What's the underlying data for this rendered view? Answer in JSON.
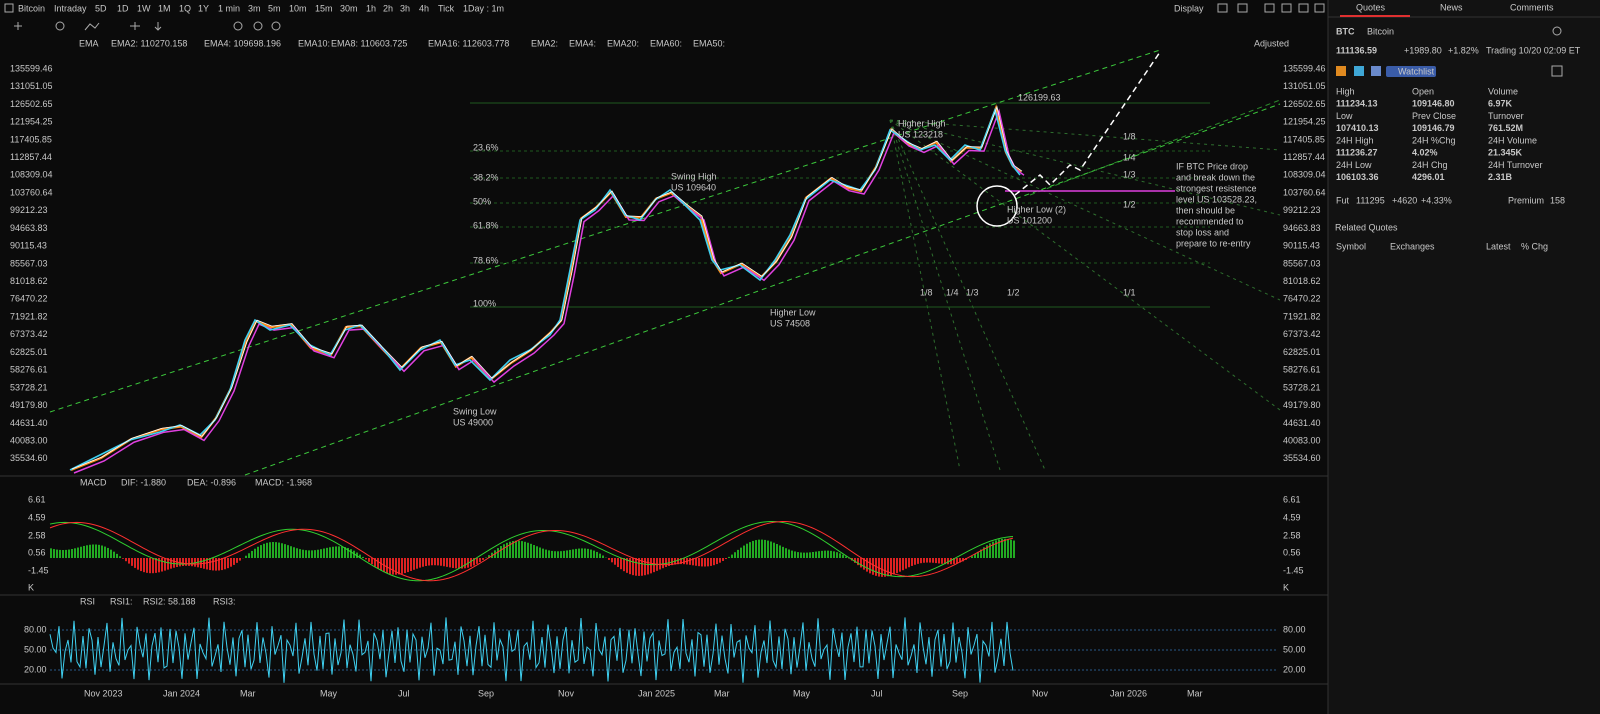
{
  "toolbar": {
    "symbol": "Bitcoin",
    "periods": [
      "Intraday",
      "5D",
      "1D",
      "1W",
      "1M",
      "1Q",
      "1Y"
    ],
    "intervals": [
      "1 min",
      "3m",
      "5m",
      "10m",
      "15m",
      "30m",
      "1h",
      "2h",
      "3h",
      "4h",
      "Tick"
    ],
    "range": "1Day : 1m",
    "display": "Display"
  },
  "tabs": [
    "Quotes",
    "News",
    "Comments"
  ],
  "main_indicator": {
    "name": "EMA",
    "adjusted": "Adjusted",
    "items": [
      {
        "text": "EMA2: 110270.158",
        "color": "#ff8c1a"
      },
      {
        "text": "EMA4: 109698.196",
        "color": "#3fd0f0"
      },
      {
        "text": "EMA10:",
        "color": "#e040e0"
      },
      {
        "text": "EMA8: 110603.725",
        "color": "#3fd0f0"
      },
      {
        "text": "EMA16: 112603.778",
        "color": "#e040e0"
      },
      {
        "text": "EMA2:",
        "color": "#30c030"
      },
      {
        "text": "EMA4:",
        "color": "#e03030"
      },
      {
        "text": "EMA20:",
        "color": "#d0d0d0"
      },
      {
        "text": "EMA60:",
        "color": "#a070ff"
      },
      {
        "text": "EMA50:",
        "color": "#d0b040"
      }
    ]
  },
  "price_axis": [
    "135599.46",
    "131051.05",
    "126502.65",
    "121954.25",
    "117405.85",
    "112857.44",
    "108309.04",
    "103760.64",
    "99212.23",
    "94663.83",
    "90115.43",
    "85567.03",
    "81018.62",
    "76470.22",
    "71921.82",
    "67373.42",
    "62825.01",
    "58276.61",
    "53728.21",
    "49179.80",
    "44631.40",
    "40083.00",
    "35534.60"
  ],
  "annotations": {
    "peak": "126199.63",
    "higher_high": [
      "Higher High",
      "US 123218"
    ],
    "swing_high": [
      "Swing High",
      "US 109640"
    ],
    "fib": [
      "23.6%",
      "38.2%",
      "50%",
      "61.8%",
      "78.6%",
      "100%"
    ],
    "swing_low": [
      "Swing Low",
      "US 49000"
    ],
    "higher_low": [
      "Higher Low",
      "US 74508"
    ],
    "higher_low_2": [
      "Higher Low (2)",
      "US 101200"
    ],
    "fan_right": [
      "1/8",
      "1/4",
      "1/3",
      "1/2",
      "1/1"
    ],
    "fan_bottom": [
      "1/8",
      "1/4",
      "1/3",
      "1/2"
    ],
    "note": [
      "IF BTC Price drop",
      "and break down the",
      "strongest resistence",
      "level US 103528.23,",
      "then should be",
      "recommended to",
      "stop loss and",
      "prepare to re-entry"
    ]
  },
  "macd": {
    "name": "MACD",
    "items": [
      {
        "text": "DIF: -1.880",
        "color": "#30d030"
      },
      {
        "text": "DEA: -0.896",
        "color": "#ff3030"
      },
      {
        "text": "MACD: -1.968",
        "color": "#e040e0"
      }
    ],
    "axis": [
      "6.61",
      "4.59",
      "2.58",
      "0.56",
      "-1.45",
      "K"
    ]
  },
  "rsi": {
    "name": "RSI",
    "items": [
      {
        "text": "RSI1:",
        "color": "#ff3030"
      },
      {
        "text": "RSI2: 58.188",
        "color": "#3fd0f0"
      },
      {
        "text": "RSI3:",
        "color": "#c0c0c0"
      }
    ],
    "axis": [
      "80.00",
      "50.00",
      "20.00"
    ]
  },
  "time_axis": [
    "Nov 2023",
    "Jan 2024",
    "Mar",
    "May",
    "Jul",
    "Sep",
    "Nov",
    "Jan 2025",
    "Mar",
    "May",
    "Jul",
    "Sep",
    "Nov",
    "Jan 2026",
    "Mar"
  ],
  "quote": {
    "symbol": "BTC",
    "name": "Bitcoin",
    "price": "111136.59",
    "change": "+1989.80",
    "change_pct": "+1.82%",
    "status": "Trading 10/20 02:09 ET",
    "watchlist": "Watchlist",
    "stats": [
      {
        "label": "High",
        "value": "111234.13"
      },
      {
        "label": "Open",
        "value": "109146.80"
      },
      {
        "label": "Volume",
        "value": "6.97K"
      },
      {
        "label": "Low",
        "value": "107410.13"
      },
      {
        "label": "Prev Close",
        "value": "109146.79"
      },
      {
        "label": "Turnover",
        "value": "761.52M"
      },
      {
        "label": "24H High",
        "value": "111236.27"
      },
      {
        "label": "24H %Chg",
        "value": "4.02%"
      },
      {
        "label": "24H Volume",
        "value": "21.345K"
      },
      {
        "label": "24H Low",
        "value": "106103.36"
      },
      {
        "label": "24H Chg",
        "value": "4296.01"
      },
      {
        "label": "24H Turnover",
        "value": "2.31B"
      }
    ],
    "fut": {
      "label": "Fut",
      "price": "111295",
      "change": "+4620",
      "change_pct": "+4.33%",
      "premium_label": "Premium",
      "premium": "158"
    },
    "related": {
      "title": "Related Quotes",
      "columns": [
        "Symbol",
        "Exchanges",
        "Latest",
        "% Chg"
      ]
    }
  }
}
